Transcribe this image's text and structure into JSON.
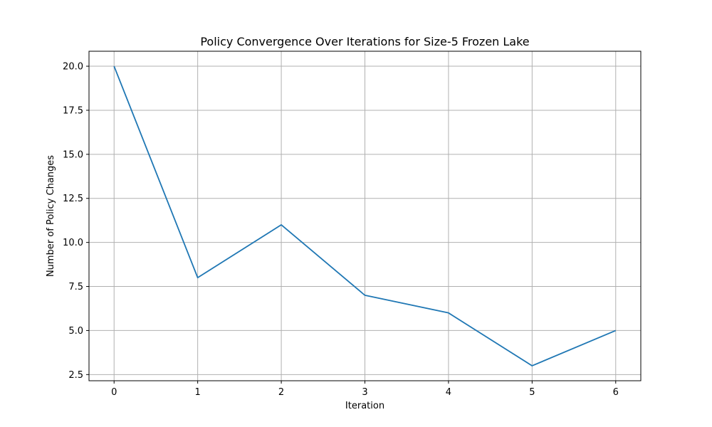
{
  "chart_data": {
    "type": "line",
    "title": "Policy Convergence Over Iterations for Size-5 Frozen Lake",
    "xlabel": "Iteration",
    "ylabel": "Number of Policy Changes",
    "x": [
      0,
      1,
      2,
      3,
      4,
      5,
      6
    ],
    "series": [
      {
        "values": [
          20,
          8,
          11,
          7,
          6,
          3,
          5
        ],
        "color": "#1f77b4"
      }
    ],
    "xlim": [
      -0.3,
      6.3
    ],
    "ylim": [
      2.15,
      20.85
    ],
    "xticks": [
      "0",
      "1",
      "2",
      "3",
      "4",
      "5",
      "6"
    ],
    "yticks": [
      "2.5",
      "5.0",
      "7.5",
      "10.0",
      "12.5",
      "15.0",
      "17.5",
      "20.0"
    ],
    "grid": true,
    "legend": false
  }
}
